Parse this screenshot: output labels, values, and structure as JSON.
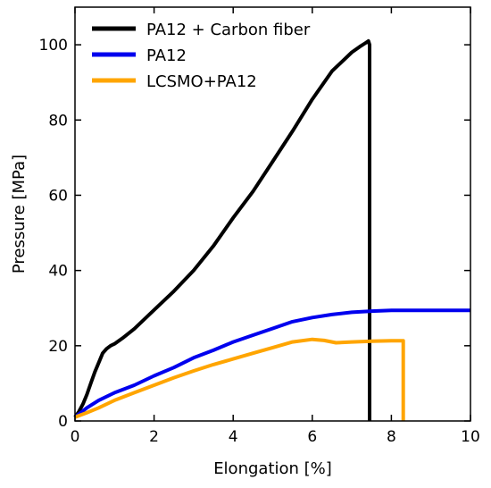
{
  "chart_data": {
    "type": "line",
    "xlabel": "Elongation [%]",
    "ylabel": "Pressure [MPa]",
    "xlim": [
      0,
      10
    ],
    "ylim": [
      0,
      110
    ],
    "xticks": [
      0,
      2,
      4,
      6,
      8,
      10
    ],
    "yticks": [
      0,
      20,
      40,
      60,
      80,
      100
    ],
    "grid": false,
    "legend_position": "top-left",
    "series": [
      {
        "name": "PA12 + Carbon fiber",
        "color": "#000000",
        "x": [
          0,
          0.1,
          0.2,
          0.3,
          0.4,
          0.5,
          0.6,
          0.7,
          0.8,
          0.9,
          1.0,
          1.2,
          1.5,
          2.0,
          2.5,
          3.0,
          3.5,
          4.0,
          4.5,
          5.0,
          5.5,
          6.0,
          6.5,
          7.0,
          7.2,
          7.35,
          7.42,
          7.45,
          7.45
        ],
        "y": [
          1,
          2.5,
          4.5,
          7,
          10,
          13,
          15.5,
          18,
          19.2,
          20,
          20.5,
          22,
          24.5,
          29.5,
          34.5,
          40,
          46.5,
          54,
          61,
          69,
          77,
          85.5,
          93,
          98,
          99.5,
          100.5,
          101,
          100,
          0
        ]
      },
      {
        "name": "PA12",
        "color": "#0000ee",
        "x": [
          0,
          0.3,
          0.6,
          1.0,
          1.5,
          2.0,
          2.5,
          3.0,
          3.5,
          4.0,
          4.5,
          5.0,
          5.5,
          6.0,
          6.5,
          7.0,
          7.5,
          8.0,
          9.0,
          10.0
        ],
        "y": [
          1,
          3.5,
          5.5,
          7.5,
          9.5,
          12,
          14.2,
          16.8,
          18.8,
          21,
          22.8,
          24.6,
          26.4,
          27.5,
          28.3,
          28.9,
          29.2,
          29.4,
          29.4,
          29.4
        ]
      },
      {
        "name": "LCSMO+PA12",
        "color": "#ffa500",
        "x": [
          0,
          0.3,
          0.6,
          1.0,
          1.5,
          2.0,
          2.5,
          3.0,
          3.5,
          4.0,
          4.5,
          5.0,
          5.5,
          6.0,
          6.3,
          6.6,
          7.0,
          7.5,
          8.0,
          8.3,
          8.3
        ],
        "y": [
          1,
          2.2,
          3.5,
          5.5,
          7.5,
          9.5,
          11.5,
          13.3,
          15,
          16.5,
          18,
          19.5,
          21,
          21.7,
          21.4,
          20.8,
          21,
          21.2,
          21.3,
          21.3,
          0
        ]
      }
    ]
  }
}
